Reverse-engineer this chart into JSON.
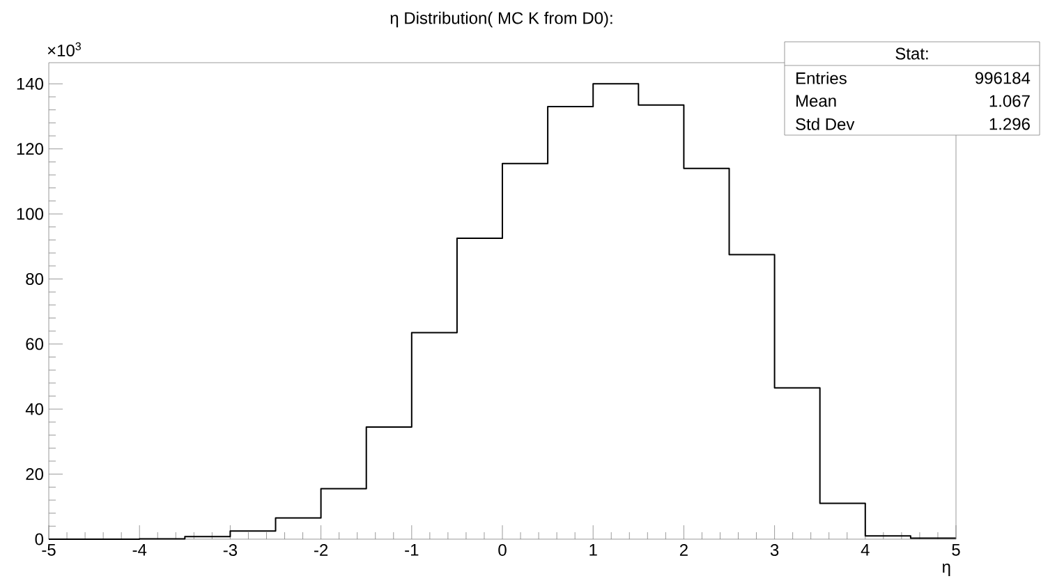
{
  "chart_data": {
    "type": "histogram",
    "title": "η Distribution( MC K from D0):",
    "xlabel": "η",
    "ylabel": "×10$^{3}$",
    "bins": [
      -5,
      -4.5,
      -4,
      -3.5,
      -3,
      -2.5,
      -2,
      -1.5,
      -1,
      -0.5,
      0,
      0.5,
      1,
      1.5,
      2,
      2.5,
      3,
      3.5,
      4,
      4.5,
      5
    ],
    "values": [
      0,
      0,
      0.1,
      0.8,
      2.5,
      6.5,
      15.5,
      34.5,
      63.5,
      92.5,
      115.5,
      133,
      140,
      133.5,
      114,
      87.5,
      46.5,
      11,
      1,
      0.3
    ],
    "color": "#000000",
    "xlim": [
      -5,
      5
    ],
    "ylim": [
      0,
      146.5
    ],
    "xticks": [
      -5,
      -4,
      -3,
      -2,
      -1,
      0,
      1,
      2,
      3,
      4,
      5
    ],
    "yticks": [
      0,
      20,
      40,
      60,
      80,
      100,
      120,
      140
    ],
    "annotations": [
      "Stat:",
      "Entries",
      "996184",
      "Mean",
      "1.067",
      "Std Dev",
      "1.296"
    ]
  }
}
